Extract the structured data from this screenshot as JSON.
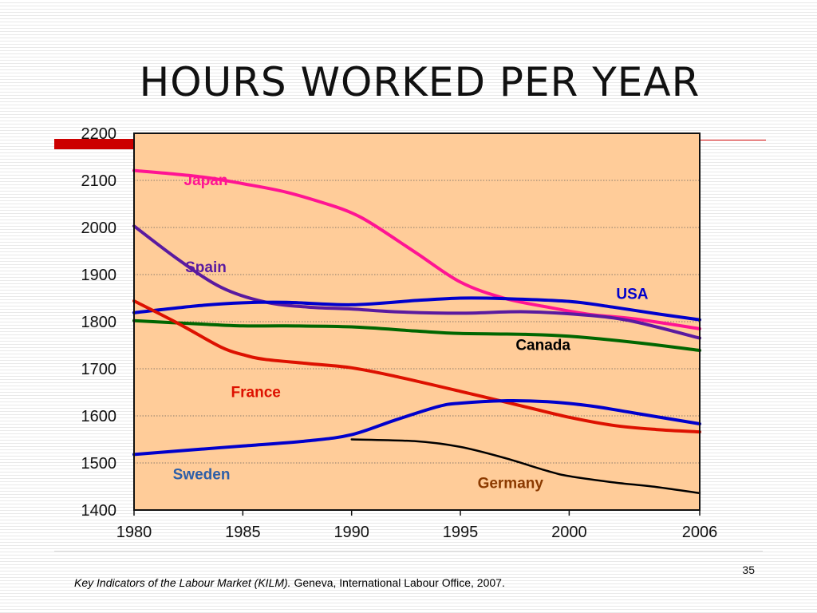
{
  "slide": {
    "title": "HOURS WORKED PER YEAR",
    "number": "35",
    "citation_italic": "Key Indicators of the Labour Market (KILM).",
    "citation_rest": " Geneva, International Labour Office, 2007.",
    "accent_color": "#cc0000"
  },
  "chart_data": {
    "type": "line",
    "title": "HOURS WORKED PER YEAR",
    "xlabel": "",
    "ylabel": "",
    "xlim": [
      1980,
      2006
    ],
    "ylim": [
      1400,
      2200
    ],
    "x_ticks": [
      1980,
      1985,
      1990,
      1995,
      2000,
      2006
    ],
    "y_ticks": [
      1400,
      1500,
      1600,
      1700,
      1800,
      1900,
      2000,
      2100,
      2200
    ],
    "grid": "horizontal dotted",
    "plot_background": "#ffcc99",
    "series": [
      {
        "name": "Japan",
        "color": "#ff1493",
        "x": [
          1980,
          1983,
          1985,
          1987,
          1989,
          1990,
          1991,
          1993,
          1995,
          1997,
          1999,
          2001,
          2003,
          2006
        ],
        "y": [
          2121,
          2108,
          2093,
          2075,
          2048,
          2031,
          2006,
          1945,
          1884,
          1850,
          1831,
          1815,
          1806,
          1785
        ]
      },
      {
        "name": "Spain",
        "color": "#5a1aa0",
        "x": [
          1980,
          1982,
          1984,
          1986,
          1988,
          1990,
          1992,
          1995,
          1998,
          2001,
          2003,
          2006
        ],
        "y": [
          2003,
          1933,
          1873,
          1842,
          1831,
          1827,
          1821,
          1818,
          1821,
          1813,
          1800,
          1765
        ]
      },
      {
        "name": "USA",
        "color": "#0000cc",
        "x": [
          1980,
          1983,
          1985,
          1987,
          1990,
          1993,
          1995,
          1997,
          2000,
          2002,
          2004,
          2006
        ],
        "y": [
          1819,
          1834,
          1840,
          1841,
          1836,
          1845,
          1850,
          1849,
          1843,
          1831,
          1817,
          1804
        ]
      },
      {
        "name": "Canada",
        "color": "#006600",
        "x": [
          1980,
          1983,
          1985,
          1987,
          1990,
          1993,
          1995,
          1998,
          2000,
          2003,
          2006
        ],
        "y": [
          1802,
          1795,
          1791,
          1791,
          1789,
          1780,
          1775,
          1773,
          1769,
          1756,
          1739
        ]
      },
      {
        "name": "France",
        "color": "#dd1100",
        "x": [
          1980,
          1982,
          1984,
          1985,
          1986,
          1988,
          1990,
          1992,
          1995,
          1998,
          2000,
          2002,
          2004,
          2006
        ],
        "y": [
          1844,
          1797,
          1746,
          1730,
          1720,
          1711,
          1702,
          1684,
          1652,
          1619,
          1597,
          1580,
          1571,
          1566
        ]
      },
      {
        "name": "Sweden",
        "color": "#0000cc",
        "x": [
          1980,
          1983,
          1985,
          1988,
          1990,
          1992,
          1994,
          1995,
          1997,
          1999,
          2001,
          2003,
          2006
        ],
        "y": [
          1518,
          1529,
          1536,
          1547,
          1560,
          1591,
          1620,
          1627,
          1632,
          1630,
          1621,
          1606,
          1583
        ]
      },
      {
        "name": "Germany",
        "color": "#000000",
        "x": [
          1990,
          1993,
          1995,
          1997,
          1999,
          2000,
          2002,
          2004,
          2006
        ],
        "y": [
          1550,
          1546,
          1534,
          1511,
          1483,
          1472,
          1459,
          1449,
          1436
        ]
      }
    ],
    "labels": [
      {
        "text": "Japan",
        "color": "#ff1493",
        "x": 1983.3,
        "y": 2090
      },
      {
        "text": "Spain",
        "color": "#5a1aa0",
        "x": 1983.3,
        "y": 1905
      },
      {
        "text": "USA",
        "color": "#0000cc",
        "x": 2002.9,
        "y": 1848
      },
      {
        "text": "Canada",
        "color": "#000000",
        "x": 1998.8,
        "y": 1740
      },
      {
        "text": "France",
        "color": "#dd1100",
        "x": 1985.6,
        "y": 1640
      },
      {
        "text": "Sweden",
        "color": "#2e5fa8",
        "x": 1983.1,
        "y": 1465
      },
      {
        "text": "Germany",
        "color": "#8b3a00",
        "x": 1997.3,
        "y": 1447
      }
    ]
  }
}
